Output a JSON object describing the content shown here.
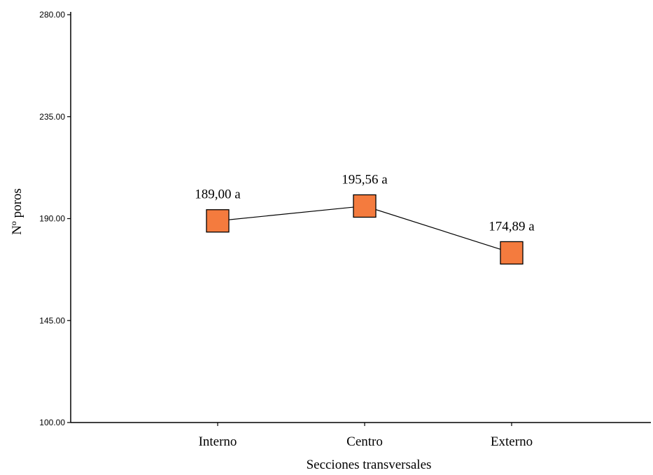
{
  "chart_data": {
    "type": "line",
    "categories": [
      "Interno",
      "Centro",
      "Externo"
    ],
    "values": [
      189.0,
      195.56,
      174.89
    ],
    "data_labels": [
      "189,00 a",
      "195,56 a",
      "174,89 a"
    ],
    "xlabel": "Secciones transversales",
    "ylabel": "Nº poros",
    "ylim": [
      100,
      280
    ],
    "yticks": [
      100,
      145,
      190,
      235,
      280
    ],
    "ytick_labels": [
      "100.00",
      "145.00",
      "190.00",
      "235.00",
      "280.00"
    ],
    "grid": false,
    "marker": "square",
    "marker_color": "#F47B3E",
    "line_color": "#000000"
  }
}
